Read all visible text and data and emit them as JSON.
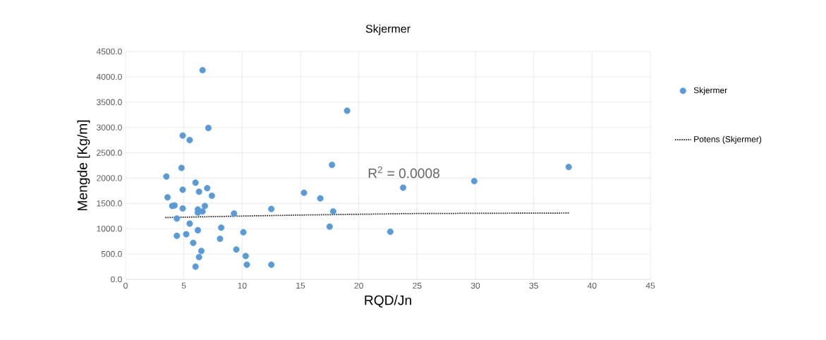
{
  "chart_data": {
    "type": "scatter",
    "title": "Skjermer",
    "xlabel": "RQD/Jn",
    "ylabel": "Mengde [Kg/m]",
    "xlim": [
      0,
      45
    ],
    "xticks": [
      0,
      5,
      10,
      15,
      20,
      25,
      30,
      35,
      40,
      45
    ],
    "ylim": [
      0,
      4500
    ],
    "yticks": [
      {
        "value": 0,
        "label": "0.0"
      },
      {
        "value": 500,
        "label": "500.0"
      },
      {
        "value": 1000,
        "label": "1000.0"
      },
      {
        "value": 1500,
        "label": "1500.0"
      },
      {
        "value": 2000,
        "label": "2000.0"
      },
      {
        "value": 2500,
        "label": "2500.0"
      },
      {
        "value": 3000,
        "label": "3000.0"
      },
      {
        "value": 3500,
        "label": "3500.0"
      },
      {
        "value": 4000,
        "label": "4000.0"
      },
      {
        "value": 4500,
        "label": "4500.0"
      }
    ],
    "grid": true,
    "legend": "right",
    "annotations": [
      "R$^{2}$ = 0.0008"
    ],
    "series": [
      {
        "name": "Skjermer",
        "marker": "circle",
        "color": "#5b9bd5",
        "x": [
          6.6,
          7.1,
          4.9,
          5.5,
          4.8,
          3.5,
          6.0,
          4.9,
          6.3,
          7.0,
          7.4,
          3.6,
          4.0,
          4.2,
          4.9,
          6.2,
          6.2,
          6.6,
          6.8,
          9.3,
          12.5,
          4.4,
          5.5,
          6.2,
          8.2,
          10.1,
          4.4,
          5.2,
          5.8,
          8.1,
          6.5,
          9.5,
          6.3,
          10.3,
          6.0,
          10.4,
          12.5,
          19.0,
          15.3,
          16.7,
          17.7,
          17.8,
          17.5,
          22.7,
          23.8,
          29.9,
          38.0
        ],
        "values": [
          4130,
          2990,
          2840,
          2750,
          2200,
          2030,
          1910,
          1770,
          1730,
          1800,
          1650,
          1620,
          1450,
          1460,
          1400,
          1380,
          1320,
          1340,
          1450,
          1300,
          1390,
          1200,
          1100,
          970,
          1020,
          930,
          860,
          890,
          720,
          800,
          560,
          590,
          440,
          460,
          250,
          290,
          290,
          3330,
          1710,
          1600,
          2260,
          1340,
          1040,
          940,
          1810,
          1940,
          2220
        ]
      },
      {
        "name": "Potens (Skjermer)",
        "type": "line",
        "color": "#262626",
        "line_style": "dotted",
        "marker": "none",
        "x": [
          3.4,
          10,
          15,
          25,
          38.0
        ],
        "values": [
          1220,
          1250,
          1270,
          1300,
          1310
        ]
      }
    ]
  }
}
